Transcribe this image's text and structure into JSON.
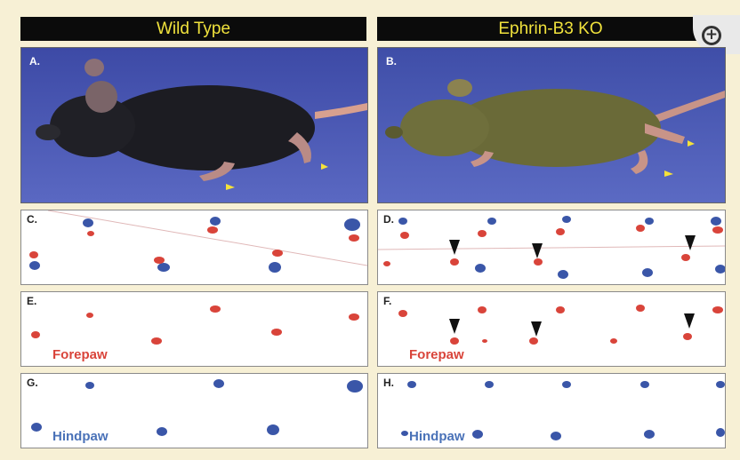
{
  "headers": {
    "left": "Wild Type",
    "right": "Ephrin-B3 KO"
  },
  "panels": {
    "A": "A.",
    "B": "B.",
    "C": "C.",
    "D": "D.",
    "E": "E.",
    "F": "F.",
    "G": "G.",
    "H": "H."
  },
  "tags": {
    "forepaw": "Forepaw",
    "hindpaw": "Hindpaw"
  },
  "zoom_label": "+",
  "colors": {
    "forepaw": "#d9443a",
    "hindpaw": "#3a56a8",
    "header_text": "#f0e23c",
    "photo_bg": "#4a58b4"
  }
}
